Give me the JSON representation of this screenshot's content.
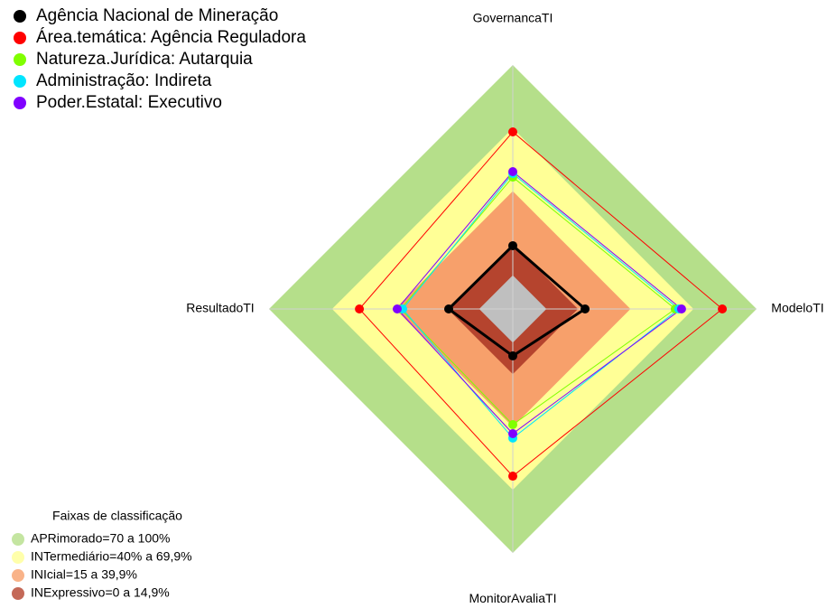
{
  "chart_data": {
    "type": "radar",
    "categories": [
      "GovernancaTI",
      "ModeloTI",
      "MonitorAvaliaTI",
      "ResultadoTI"
    ],
    "ylim": [
      -16,
      100
    ],
    "series": [
      {
        "name": "Agência Nacional de Mineração",
        "color": "#000000",
        "values": [
          14.1,
          18.4,
          6.3,
          14.5
        ]
      },
      {
        "name": "Área.temática: Agência Reguladora",
        "color": "#ff0000",
        "values": [
          68.2,
          83.7,
          63.5,
          57.0
        ]
      },
      {
        "name": "Natureza.Jurídica: Autarquia",
        "color": "#80ff00",
        "values": [
          46.7,
          61.3,
          39.0,
          37.3
        ]
      },
      {
        "name": "Administração: Indireta",
        "color": "#00e5ff",
        "values": [
          48.4,
          63.0,
          45.4,
          36.4
        ]
      },
      {
        "name": "Poder.Estatal: Executivo",
        "color": "#8000ff",
        "values": [
          49.3,
          64.3,
          43.3,
          39.0
        ]
      }
    ],
    "bands_title": "Faixas de classificação",
    "bands": [
      {
        "label": "APRimorado=70 a 100%",
        "from": 70,
        "to": 100,
        "color": "#b5df8a"
      },
      {
        "label": "INTermediário=40% a 69,9%",
        "from": 40,
        "to": 70,
        "color": "#ffff96"
      },
      {
        "label": "INIcial=15 a 39,9%",
        "from": 15,
        "to": 40,
        "color": "#f7a06b"
      },
      {
        "label": "INExpressivo=0 a 14,9%",
        "from": 0,
        "to": 15,
        "color": "#b5442e"
      }
    ]
  }
}
